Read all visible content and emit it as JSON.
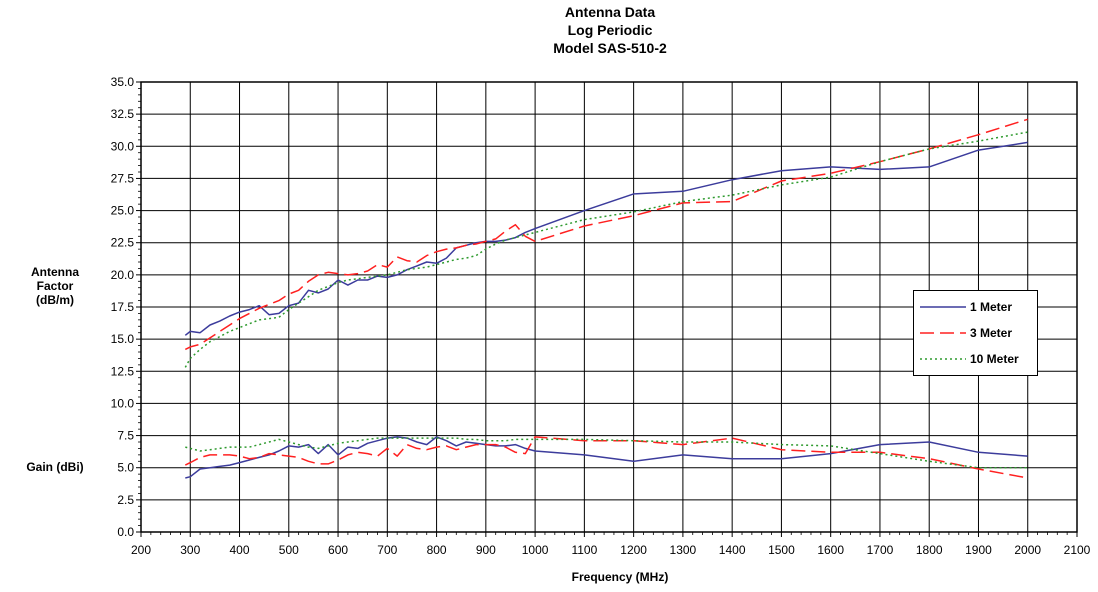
{
  "chart_data": {
    "type": "line",
    "title_lines": [
      "Antenna Data",
      "Log Periodic",
      "Model SAS-510-2"
    ],
    "xlabel": "Frequency (MHz)",
    "ylabel_top": [
      "Antenna",
      "Factor (dB/m)"
    ],
    "ylabel_bottom": "Gain (dBi)",
    "xlim": [
      200,
      2100
    ],
    "ylim": [
      0,
      35
    ],
    "x_ticks": [
      "200",
      "300",
      "400",
      "500",
      "600",
      "700",
      "800",
      "900",
      "1000",
      "1100",
      "1200",
      "1300",
      "1400",
      "1500",
      "1600",
      "1700",
      "1800",
      "1900",
      "2000",
      "2100"
    ],
    "y_ticks": [
      "0.0",
      "2.5",
      "5.0",
      "7.5",
      "10.0",
      "12.5",
      "15.0",
      "17.5",
      "20.0",
      "22.5",
      "25.0",
      "27.5",
      "30.0",
      "32.5",
      "35.0"
    ],
    "grid": true,
    "legend_position": "right-center",
    "series": [
      {
        "name": "1 Meter",
        "group": "antenna_factor",
        "color": "#3c3c9c",
        "dash": "solid",
        "x": [
          290,
          300,
          320,
          340,
          360,
          380,
          400,
          420,
          440,
          460,
          480,
          500,
          520,
          540,
          560,
          580,
          600,
          620,
          640,
          660,
          680,
          700,
          720,
          740,
          760,
          780,
          800,
          820,
          840,
          860,
          880,
          900,
          920,
          940,
          960,
          980,
          1000,
          1100,
          1200,
          1300,
          1400,
          1500,
          1600,
          1700,
          1800,
          1900,
          2000
        ],
        "y": [
          15.3,
          15.6,
          15.5,
          16.1,
          16.4,
          16.8,
          17.1,
          17.3,
          17.6,
          16.9,
          17.0,
          17.6,
          17.8,
          18.8,
          18.6,
          18.9,
          19.6,
          19.2,
          19.6,
          19.6,
          19.9,
          19.8,
          20.0,
          20.4,
          20.7,
          21.0,
          20.9,
          21.3,
          22.1,
          22.3,
          22.5,
          22.6,
          22.6,
          22.7,
          22.9,
          23.3,
          23.6,
          25.0,
          26.3,
          26.5,
          27.4,
          28.1,
          28.4,
          28.2,
          28.4,
          29.7,
          30.3
        ]
      },
      {
        "name": "3 Meter",
        "group": "antenna_factor",
        "color": "#ff2020",
        "dash": "long-dash",
        "x": [
          290,
          300,
          320,
          340,
          360,
          380,
          400,
          420,
          440,
          460,
          480,
          500,
          520,
          540,
          560,
          580,
          600,
          620,
          640,
          660,
          680,
          700,
          720,
          740,
          760,
          780,
          800,
          820,
          840,
          860,
          880,
          900,
          920,
          940,
          960,
          980,
          1000,
          1100,
          1200,
          1300,
          1400,
          1500,
          1600,
          1700,
          1800,
          1900,
          2000
        ],
        "y": [
          14.2,
          14.4,
          14.6,
          15.1,
          15.6,
          16.1,
          16.6,
          17.0,
          17.4,
          17.7,
          18.0,
          18.5,
          18.8,
          19.5,
          20.0,
          20.2,
          20.1,
          20.0,
          20.1,
          20.3,
          20.8,
          20.6,
          21.4,
          21.1,
          21.0,
          21.5,
          21.8,
          22.0,
          22.1,
          22.3,
          22.4,
          22.6,
          22.8,
          23.4,
          23.9,
          23.0,
          22.6,
          23.8,
          24.6,
          25.6,
          25.7,
          27.3,
          27.9,
          28.8,
          29.8,
          30.9,
          32.1
        ]
      },
      {
        "name": "10 Meter",
        "group": "antenna_factor",
        "color": "#2e9a2e",
        "dash": "dotted",
        "x": [
          290,
          300,
          320,
          340,
          360,
          380,
          400,
          420,
          440,
          460,
          480,
          500,
          520,
          540,
          560,
          580,
          600,
          620,
          640,
          660,
          680,
          700,
          720,
          740,
          760,
          780,
          800,
          820,
          840,
          860,
          880,
          900,
          920,
          940,
          960,
          980,
          1000,
          1100,
          1200,
          1300,
          1400,
          1500,
          1600,
          1700,
          1800,
          1900,
          2000
        ],
        "y": [
          12.8,
          13.5,
          14.2,
          14.8,
          15.2,
          15.6,
          15.9,
          16.2,
          16.5,
          16.6,
          16.7,
          17.3,
          17.8,
          18.3,
          18.8,
          19.1,
          19.4,
          19.6,
          19.7,
          19.8,
          19.9,
          20.0,
          20.2,
          20.4,
          20.5,
          20.6,
          20.8,
          21.0,
          21.2,
          21.3,
          21.5,
          22.0,
          22.4,
          22.7,
          22.9,
          23.1,
          23.3,
          24.3,
          24.9,
          25.7,
          26.2,
          27.0,
          27.6,
          28.8,
          29.8,
          30.4,
          31.1
        ]
      },
      {
        "name": "1 Meter",
        "group": "gain",
        "color": "#3c3c9c",
        "dash": "solid",
        "x": [
          290,
          300,
          320,
          340,
          360,
          380,
          400,
          420,
          440,
          460,
          480,
          500,
          520,
          540,
          560,
          580,
          600,
          620,
          640,
          660,
          680,
          700,
          720,
          740,
          760,
          780,
          800,
          820,
          840,
          860,
          880,
          900,
          920,
          940,
          960,
          980,
          1000,
          1100,
          1200,
          1300,
          1400,
          1500,
          1600,
          1700,
          1800,
          1900,
          2000
        ],
        "y": [
          4.2,
          4.3,
          4.9,
          5.0,
          5.1,
          5.2,
          5.4,
          5.6,
          5.8,
          6.0,
          6.3,
          6.7,
          6.6,
          6.8,
          6.1,
          6.8,
          6.0,
          6.6,
          6.5,
          6.9,
          7.1,
          7.3,
          7.4,
          7.3,
          7.0,
          6.8,
          7.4,
          7.1,
          6.7,
          7.0,
          6.9,
          6.8,
          6.7,
          6.7,
          6.8,
          6.5,
          6.3,
          6.0,
          5.5,
          6.0,
          5.7,
          5.7,
          6.1,
          6.8,
          7.0,
          6.2,
          5.9
        ]
      },
      {
        "name": "3 Meter",
        "group": "gain",
        "color": "#ff2020",
        "dash": "long-dash",
        "x": [
          290,
          300,
          320,
          340,
          360,
          380,
          400,
          420,
          440,
          460,
          480,
          500,
          520,
          540,
          560,
          580,
          600,
          620,
          640,
          660,
          680,
          700,
          720,
          740,
          760,
          780,
          800,
          820,
          840,
          860,
          880,
          900,
          920,
          940,
          960,
          980,
          1000,
          1100,
          1200,
          1300,
          1400,
          1500,
          1600,
          1700,
          1800,
          1900,
          2000
        ],
        "y": [
          5.2,
          5.4,
          5.8,
          6.0,
          6.0,
          6.0,
          5.9,
          5.7,
          5.8,
          6.1,
          6.0,
          5.9,
          5.8,
          5.5,
          5.3,
          5.3,
          5.6,
          6.0,
          6.2,
          6.1,
          5.9,
          6.5,
          5.9,
          6.8,
          6.5,
          6.4,
          6.6,
          6.7,
          6.4,
          6.6,
          6.8,
          6.8,
          6.8,
          6.6,
          6.2,
          6.1,
          7.4,
          7.1,
          7.1,
          6.8,
          7.3,
          6.4,
          6.2,
          6.2,
          5.7,
          4.9,
          4.2
        ]
      },
      {
        "name": "10 Meter",
        "group": "gain",
        "color": "#2e9a2e",
        "dash": "dotted",
        "x": [
          290,
          300,
          320,
          340,
          360,
          380,
          400,
          420,
          440,
          460,
          480,
          500,
          520,
          540,
          560,
          580,
          600,
          620,
          640,
          660,
          680,
          700,
          720,
          740,
          760,
          780,
          800,
          820,
          840,
          860,
          880,
          900,
          920,
          940,
          960,
          980,
          1000,
          1100,
          1200,
          1300,
          1400,
          1500,
          1600,
          1700,
          1800,
          1900,
          2000
        ],
        "y": [
          6.6,
          6.5,
          6.3,
          6.4,
          6.5,
          6.6,
          6.6,
          6.6,
          6.8,
          7.0,
          7.2,
          7.0,
          6.8,
          6.6,
          6.5,
          6.7,
          6.9,
          7.0,
          7.1,
          7.2,
          7.3,
          7.3,
          7.3,
          7.3,
          7.3,
          7.3,
          7.3,
          7.3,
          7.3,
          7.2,
          7.2,
          7.1,
          7.1,
          7.1,
          7.2,
          7.2,
          7.2,
          7.2,
          7.1,
          7.0,
          7.0,
          6.8,
          6.7,
          6.1,
          5.5,
          5.0,
          5.0
        ]
      }
    ],
    "legend": [
      {
        "label": "1 Meter",
        "color": "#3c3c9c",
        "dash": "solid"
      },
      {
        "label": "3 Meter",
        "color": "#ff2020",
        "dash": "long-dash"
      },
      {
        "label": "10 Meter",
        "color": "#2e9a2e",
        "dash": "dotted"
      }
    ]
  }
}
